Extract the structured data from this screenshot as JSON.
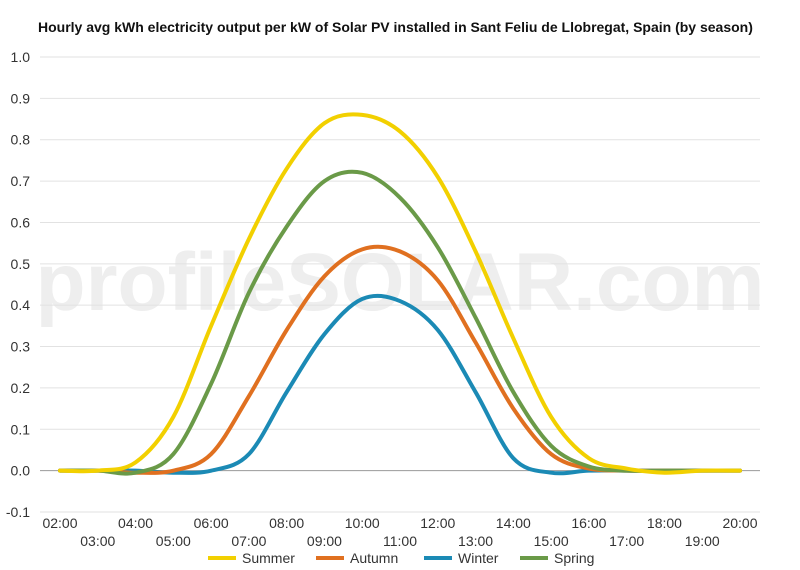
{
  "watermark": {
    "text": "profileSOLAR.com"
  },
  "chart_data": {
    "type": "line",
    "title": "Hourly avg kWh electricity output per kW of Solar PV installed in Sant Feliu de Llobregat, Spain (by season)",
    "xlabel": "",
    "ylabel": "",
    "ylim": [
      -0.1,
      1.0
    ],
    "xlim": [
      2,
      20
    ],
    "grid": true,
    "legend": "bottom",
    "y_ticks": [
      "1.0",
      "0.9",
      "0.8",
      "0.7",
      "0.6",
      "0.5",
      "0.4",
      "0.3",
      "0.2",
      "0.1",
      "0.0",
      "-0.1"
    ],
    "x_ticks": [
      "02:00",
      "03:00",
      "04:00",
      "05:00",
      "06:00",
      "07:00",
      "08:00",
      "09:00",
      "10:00",
      "11:00",
      "12:00",
      "13:00",
      "14:00",
      "15:00",
      "16:00",
      "17:00",
      "18:00",
      "19:00",
      "20:00"
    ],
    "x": [
      2,
      3,
      4,
      5,
      6,
      7,
      8,
      9,
      10,
      11,
      12,
      13,
      14,
      15,
      16,
      17,
      18,
      19,
      20
    ],
    "series": [
      {
        "name": "Summer",
        "color": "#f2d000",
        "values": [
          0,
          0,
          0.02,
          0.13,
          0.35,
          0.56,
          0.73,
          0.84,
          0.86,
          0.82,
          0.71,
          0.53,
          0.32,
          0.13,
          0.03,
          0.005,
          -0.005,
          0,
          0
        ]
      },
      {
        "name": "Autumn",
        "color": "#e07020",
        "values": [
          0,
          0,
          -0.005,
          0,
          0.04,
          0.18,
          0.34,
          0.47,
          0.535,
          0.53,
          0.46,
          0.31,
          0.15,
          0.04,
          0.005,
          0,
          0,
          0,
          0
        ]
      },
      {
        "name": "Winter",
        "color": "#1b8ab5",
        "values": [
          0,
          0,
          0,
          -0.005,
          0,
          0.04,
          0.19,
          0.33,
          0.415,
          0.41,
          0.34,
          0.19,
          0.03,
          -0.005,
          0,
          0,
          0,
          0,
          0
        ]
      },
      {
        "name": "Spring",
        "color": "#6a9a48",
        "values": [
          0,
          0,
          -0.005,
          0.04,
          0.21,
          0.43,
          0.59,
          0.7,
          0.72,
          0.66,
          0.54,
          0.37,
          0.19,
          0.06,
          0.01,
          0,
          0,
          0,
          0
        ]
      }
    ]
  }
}
